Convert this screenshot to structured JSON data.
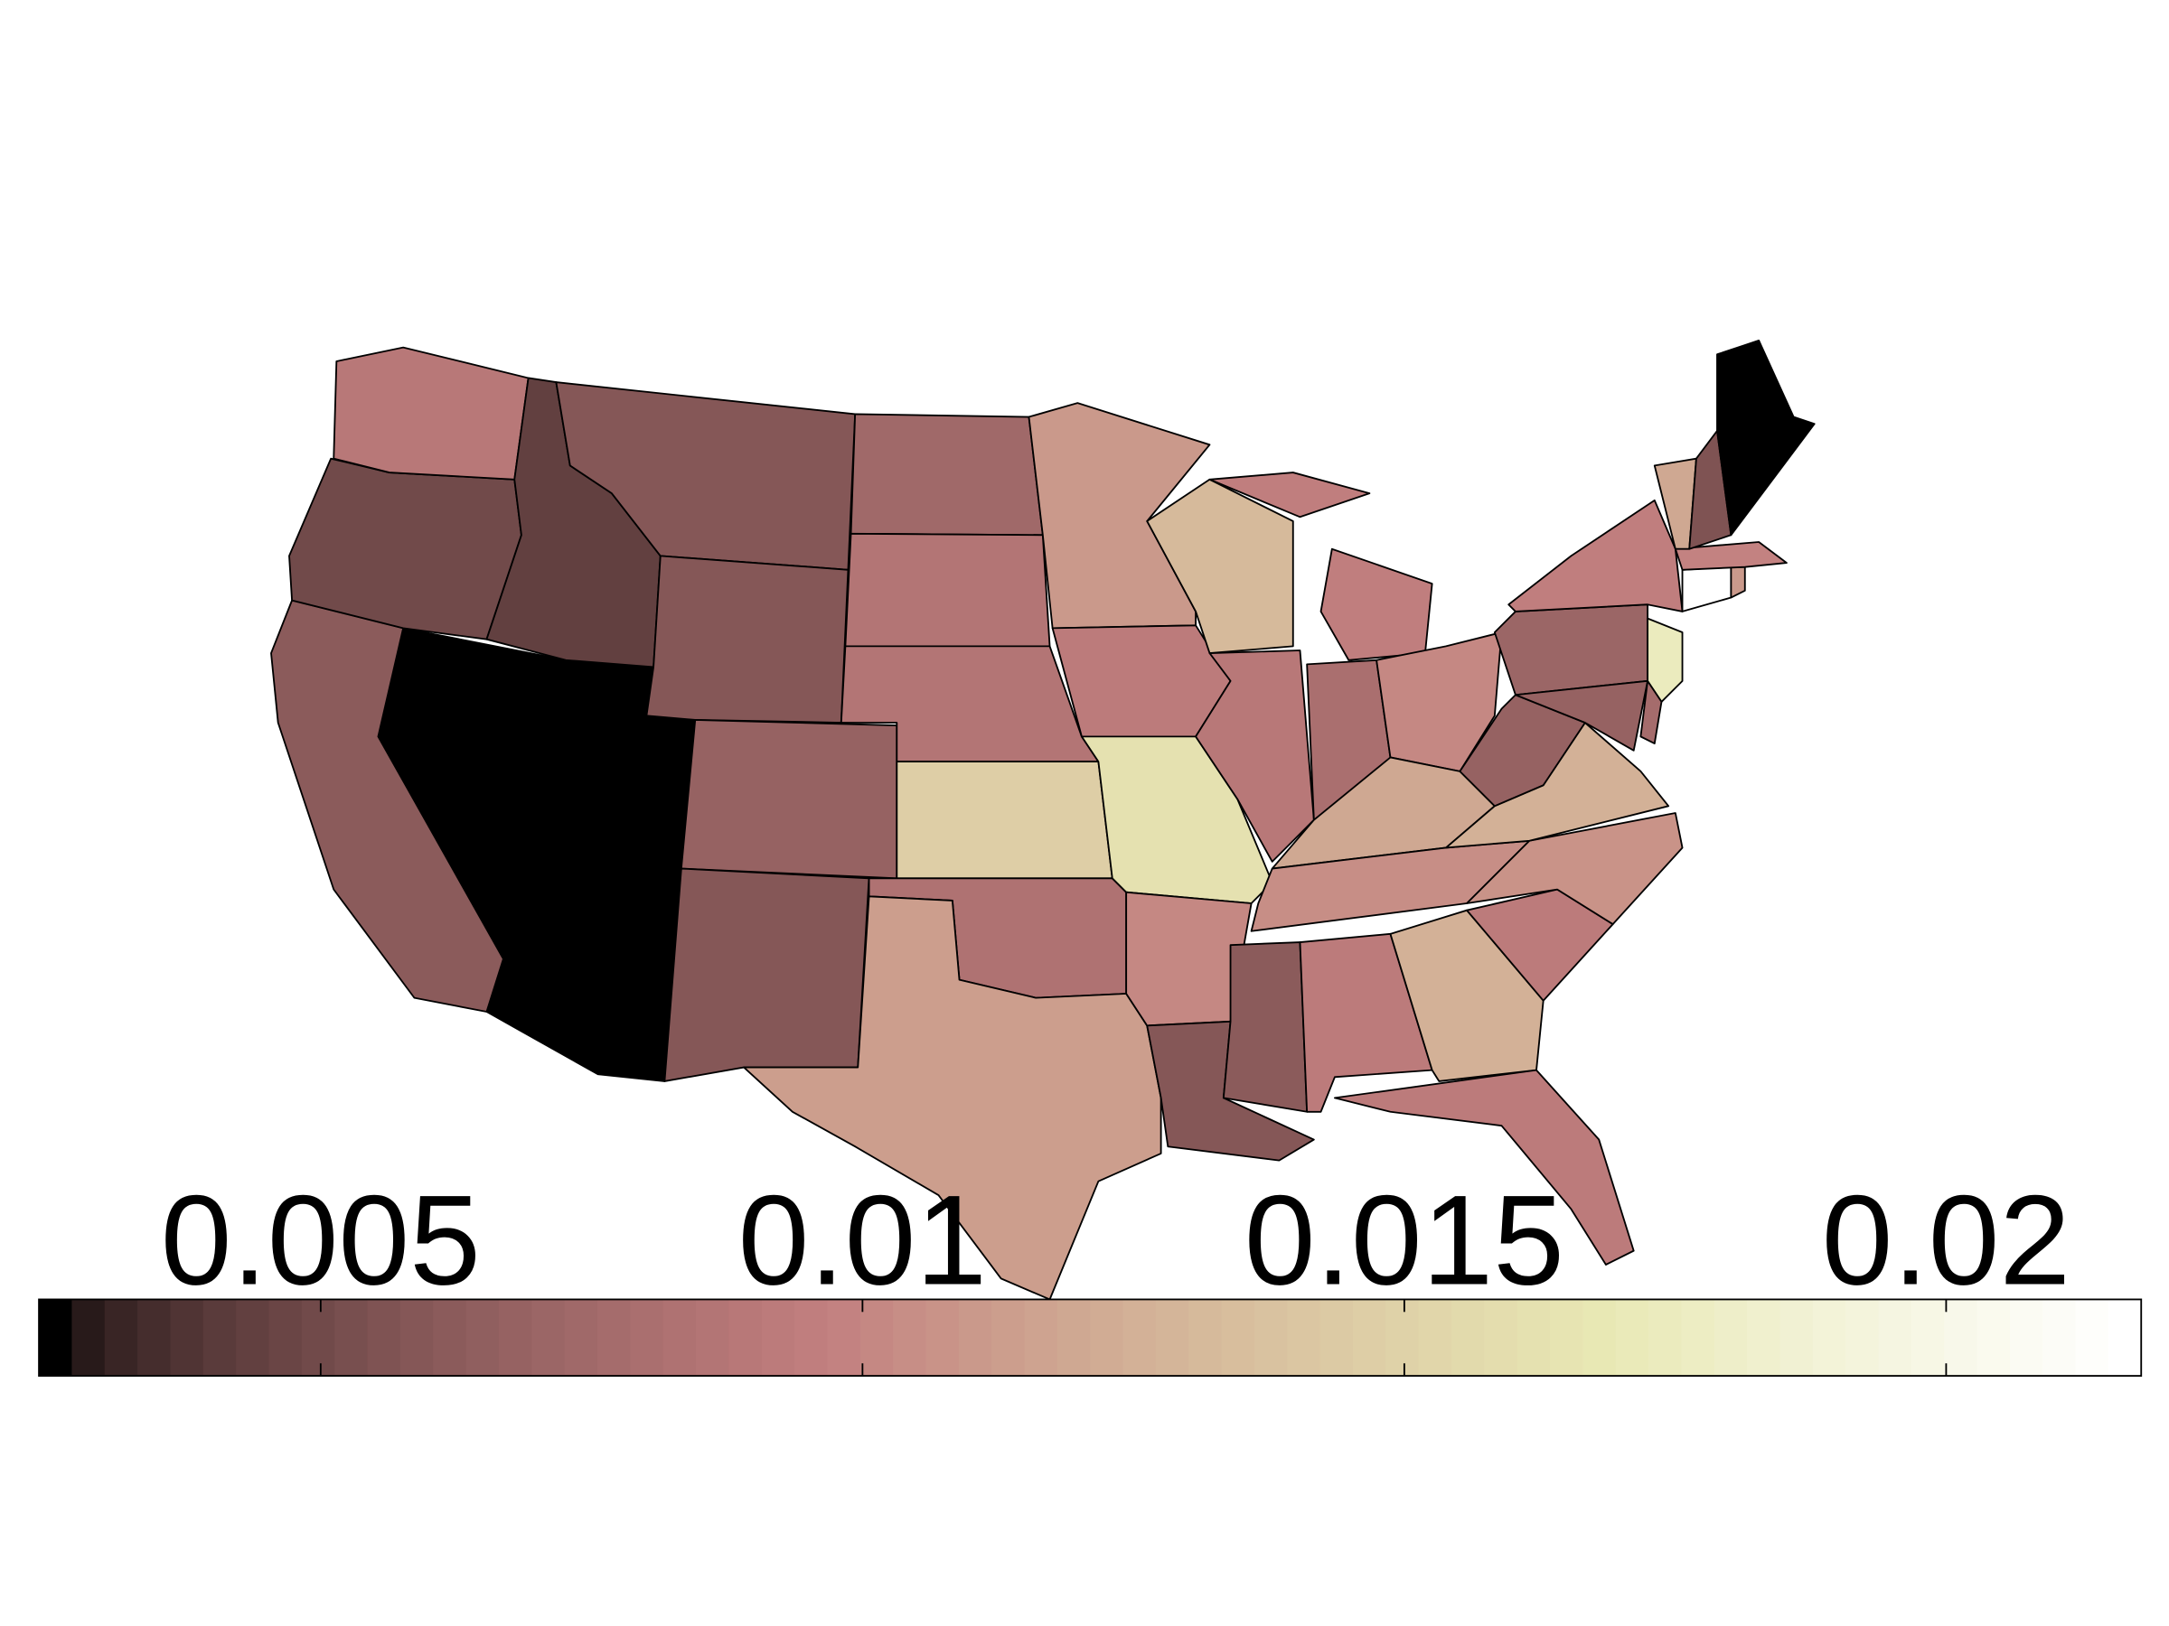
{
  "chart_data": {
    "type": "choropleth",
    "colormap": "pink",
    "values": [
      0.0025,
      0.0025,
      0.0025,
      0.0063,
      0.005,
      0.009,
      0.0045,
      0.0058,
      0.0058,
      0.0068,
      0.006,
      0.0075,
      0.0085,
      0.0085,
      0.0148,
      0.0082,
      0.0112,
      0.011,
      0.0092,
      0.0162,
      0.0102,
      0.0058,
      0.0133,
      0.009,
      0.0095,
      0.008,
      0.0102,
      0.0118,
      0.0105,
      0.0063,
      0.0093,
      0.0127,
      0.0093,
      0.0092,
      0.0107,
      0.0125,
      0.0068,
      0.007,
      0.0095,
      0.0175,
      0.0068,
      0.0078,
      0.0215,
      0.011,
      0.0097,
      0.0118,
      0.0055,
      0.0025
    ],
    "clim": [
      0.0024,
      0.0218
    ],
    "colorbar_ticks": [
      0.005,
      0.01,
      0.015,
      0.02
    ]
  }
}
